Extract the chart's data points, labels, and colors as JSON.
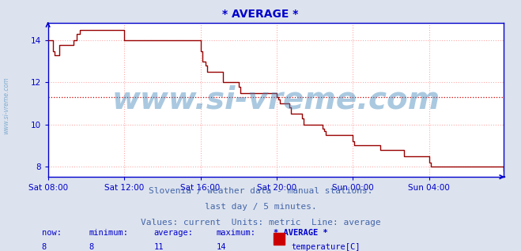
{
  "title": "* AVERAGE *",
  "title_color": "#0000cc",
  "title_fontsize": 10,
  "bg_color": "#dde3ee",
  "plot_bg_color": "#ffffff",
  "grid_color": "#ffaaaa",
  "grid_style": ":",
  "axis_color": "#0000cc",
  "tick_color": "#0000cc",
  "tick_fontsize": 7.5,
  "line_color": "#990000",
  "line_width": 1.0,
  "hline_value": 11.3,
  "hline_color": "#cc0000",
  "hline_style": ":",
  "ylim": [
    7.5,
    14.85
  ],
  "yticks": [
    8,
    10,
    12,
    14
  ],
  "watermark": "www.si-vreme.com",
  "watermark_color": "#4488bb",
  "watermark_alpha": 0.45,
  "watermark_fontsize": 28,
  "footer_lines": [
    "Slovenia / weather data - manual stations.",
    "last day / 5 minutes.",
    "Values: current  Units: metric  Line: average"
  ],
  "footer_color": "#4466aa",
  "footer_fontsize": 8,
  "stats_labels": [
    "now:",
    "minimum:",
    "average:",
    "maximum:",
    "* AVERAGE *"
  ],
  "stats_values": [
    "8",
    "8",
    "11",
    "14"
  ],
  "stats_series": "temperature[C]",
  "stats_color": "#0000cc",
  "legend_color": "#cc0000",
  "xtick_labels": [
    "Sat 08:00",
    "Sat 12:00",
    "Sat 16:00",
    "Sat 20:00",
    "Sun 00:00",
    "Sun 04:00"
  ],
  "xtick_positions": [
    0,
    48,
    96,
    144,
    192,
    240
  ],
  "total_points": 288,
  "temperature_data": [
    14.0,
    14.0,
    14.0,
    13.5,
    13.3,
    13.3,
    13.3,
    13.8,
    13.8,
    13.8,
    13.8,
    13.8,
    13.8,
    13.8,
    13.8,
    13.8,
    14.0,
    14.0,
    14.3,
    14.3,
    14.5,
    14.5,
    14.5,
    14.5,
    14.5,
    14.5,
    14.5,
    14.5,
    14.5,
    14.5,
    14.5,
    14.5,
    14.5,
    14.5,
    14.5,
    14.5,
    14.5,
    14.5,
    14.5,
    14.5,
    14.5,
    14.5,
    14.5,
    14.5,
    14.5,
    14.5,
    14.5,
    14.5,
    14.0,
    14.0,
    14.0,
    14.0,
    14.0,
    14.0,
    14.0,
    14.0,
    14.0,
    14.0,
    14.0,
    14.0,
    14.0,
    14.0,
    14.0,
    14.0,
    14.0,
    14.0,
    14.0,
    14.0,
    14.0,
    14.0,
    14.0,
    14.0,
    14.0,
    14.0,
    14.0,
    14.0,
    14.0,
    14.0,
    14.0,
    14.0,
    14.0,
    14.0,
    14.0,
    14.0,
    14.0,
    14.0,
    14.0,
    14.0,
    14.0,
    14.0,
    14.0,
    14.0,
    14.0,
    14.0,
    14.0,
    14.0,
    13.5,
    13.0,
    13.0,
    12.8,
    12.5,
    12.5,
    12.5,
    12.5,
    12.5,
    12.5,
    12.5,
    12.5,
    12.5,
    12.5,
    12.0,
    12.0,
    12.0,
    12.0,
    12.0,
    12.0,
    12.0,
    12.0,
    12.0,
    12.0,
    11.8,
    11.5,
    11.5,
    11.5,
    11.5,
    11.5,
    11.5,
    11.5,
    11.5,
    11.5,
    11.5,
    11.5,
    11.5,
    11.5,
    11.5,
    11.5,
    11.5,
    11.5,
    11.5,
    11.5,
    11.5,
    11.5,
    11.5,
    11.5,
    11.3,
    11.2,
    11.0,
    11.0,
    11.0,
    11.0,
    11.0,
    11.0,
    10.8,
    10.5,
    10.5,
    10.5,
    10.5,
    10.5,
    10.5,
    10.5,
    10.3,
    10.0,
    10.0,
    10.0,
    10.0,
    10.0,
    10.0,
    10.0,
    10.0,
    10.0,
    10.0,
    10.0,
    10.0,
    9.8,
    9.7,
    9.5,
    9.5,
    9.5,
    9.5,
    9.5,
    9.5,
    9.5,
    9.5,
    9.5,
    9.5,
    9.5,
    9.5,
    9.5,
    9.5,
    9.5,
    9.5,
    9.5,
    9.2,
    9.0,
    9.0,
    9.0,
    9.0,
    9.0,
    9.0,
    9.0,
    9.0,
    9.0,
    9.0,
    9.0,
    9.0,
    9.0,
    9.0,
    9.0,
    9.0,
    8.8,
    8.8,
    8.8,
    8.8,
    8.8,
    8.8,
    8.8,
    8.8,
    8.8,
    8.8,
    8.8,
    8.8,
    8.8,
    8.8,
    8.8,
    8.5,
    8.5,
    8.5,
    8.5,
    8.5,
    8.5,
    8.5,
    8.5,
    8.5,
    8.5,
    8.5,
    8.5,
    8.5,
    8.5,
    8.5,
    8.5,
    8.2,
    8.0,
    8.0,
    8.0,
    8.0,
    8.0,
    8.0,
    8.0,
    8.0,
    8.0,
    8.0,
    8.0,
    8.0,
    8.0,
    8.0,
    8.0,
    8.0,
    8.0,
    8.0,
    8.0,
    8.0,
    8.0,
    8.0,
    8.0,
    8.0,
    8.0,
    8.0,
    8.0,
    8.0,
    8.0,
    8.0,
    8.0,
    8.0,
    8.0,
    8.0,
    8.0,
    8.0,
    8.0,
    8.0,
    8.0,
    8.0,
    8.0,
    8.0,
    8.0,
    8.0,
    8.0,
    8.0,
    7.8
  ]
}
